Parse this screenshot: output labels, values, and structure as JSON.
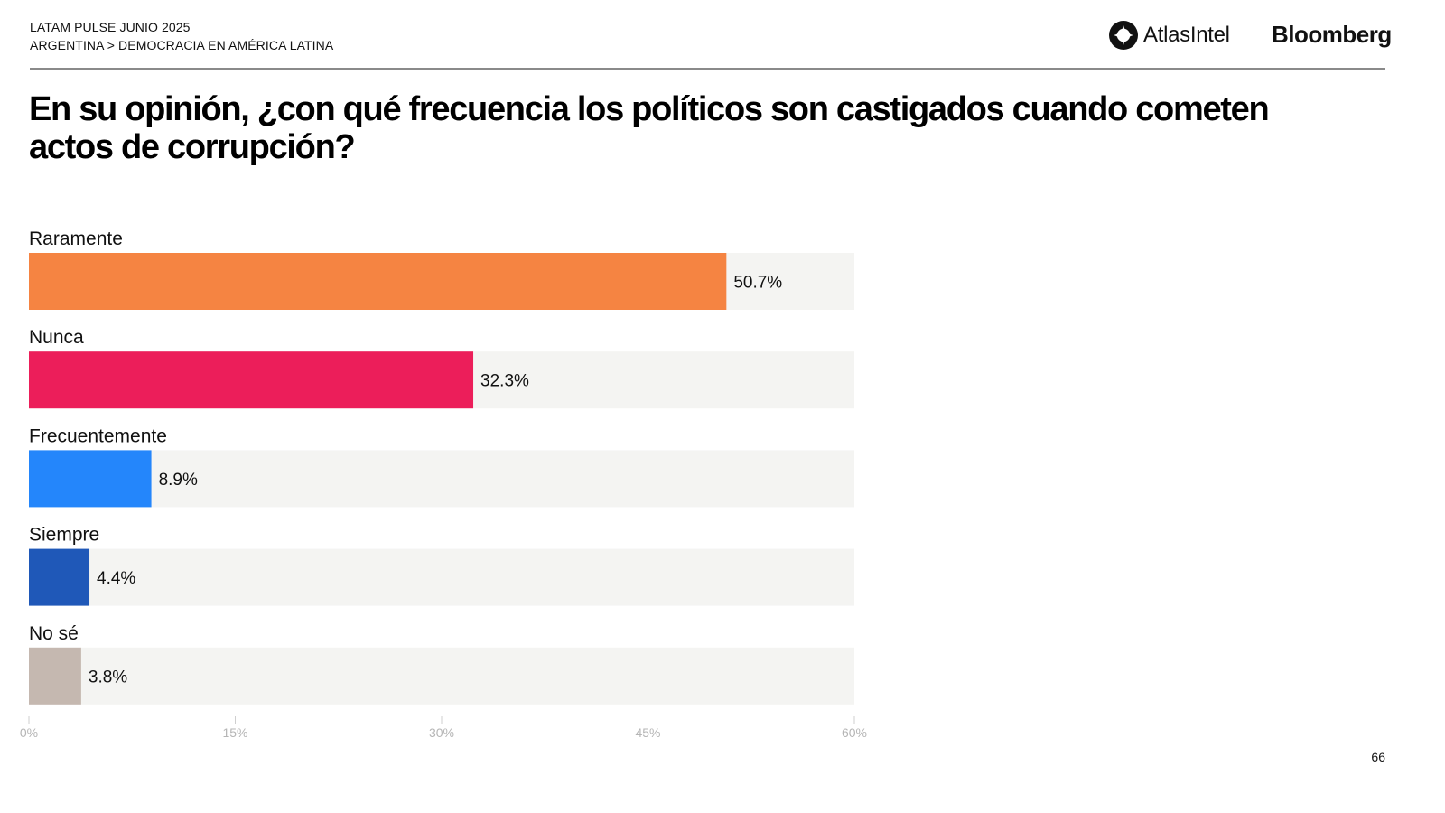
{
  "header": {
    "survey": "LATAM PULSE JUNIO 2025",
    "breadcrumb": "ARGENTINA > DEMOCRACIA EN AMÉRICA LATINA",
    "logos": {
      "atlas": "AtlasIntel",
      "bloomberg": "Bloomberg"
    }
  },
  "title": "En su opinión, ¿con qué frecuencia los políticos son castigados cuando cometen actos de corrupción?",
  "page_number": "66",
  "colors": {
    "track": "#f4f4f2",
    "axis": "#cfcfcf"
  },
  "chart_data": {
    "type": "bar",
    "orientation": "horizontal",
    "title": "En su opinión, ¿con qué frecuencia los políticos son castigados cuando cometen actos de corrupción?",
    "xlabel": "",
    "ylabel": "",
    "xlim": [
      0,
      60
    ],
    "grid": false,
    "categories": [
      "Raramente",
      "Nunca",
      "Frecuentemente",
      "Siempre",
      "No sé"
    ],
    "values": [
      50.7,
      32.3,
      8.9,
      4.4,
      3.8
    ],
    "value_labels": [
      "50.7%",
      "32.3%",
      "8.9%",
      "4.4%",
      "3.8%"
    ],
    "bar_colors": [
      "#f58442",
      "#ec1e5a",
      "#2486fb",
      "#1f58b8",
      "#c5b8b0"
    ],
    "ticks": [
      0,
      15,
      30,
      45,
      60
    ],
    "tick_labels": [
      "0%",
      "15%",
      "30%",
      "45%",
      "60%"
    ]
  }
}
